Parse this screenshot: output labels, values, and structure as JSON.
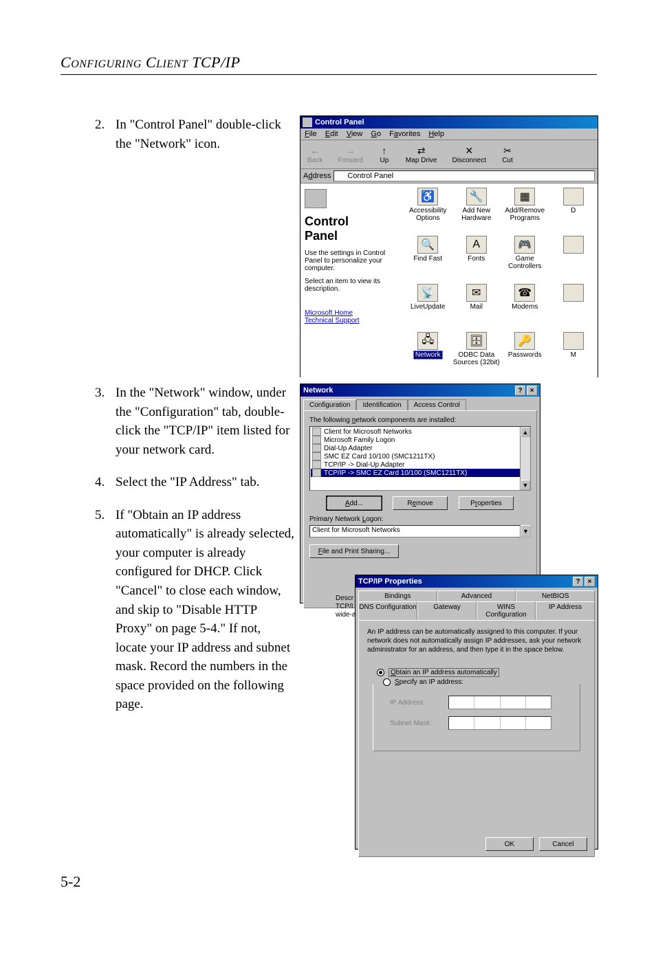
{
  "page": {
    "header": "CONFIGURING CLIENT TCP/IP",
    "page_number": "5-2"
  },
  "steps": [
    {
      "num": "2.",
      "text": "In \"Control Panel\" double-click the \"Network\" icon."
    },
    {
      "num": "3.",
      "text": "In the \"Network\" window, under the \"Configuration\" tab, double-click the \"TCP/IP\" item listed for your network card."
    },
    {
      "num": "4.",
      "text": "Select the \"IP Address\" tab."
    },
    {
      "num": "5.",
      "text": "If \"Obtain an IP address automatically\" is already selected, your computer is already configured for DHCP. Click \"Cancel\" to close each window, and skip to \"Disable HTTP Proxy\" on page 5-4.\" If not, locate your IP address and subnet mask. Record the numbers in the space provided on the following page."
    }
  ],
  "control_panel": {
    "title": "Control Panel",
    "menus": [
      "File",
      "Edit",
      "View",
      "Go",
      "Favorites",
      "Help"
    ],
    "toolbar": [
      {
        "label": "Back",
        "enabled": false,
        "glyph": "←"
      },
      {
        "label": "Forward",
        "enabled": false,
        "glyph": "→"
      },
      {
        "label": "Up",
        "enabled": true,
        "glyph": "↑"
      },
      {
        "label": "Map Drive",
        "enabled": true,
        "glyph": "⇄"
      },
      {
        "label": "Disconnect",
        "enabled": true,
        "glyph": "✕"
      },
      {
        "label": "Cut",
        "enabled": true,
        "glyph": "✂"
      }
    ],
    "address_label": "Address",
    "address_value": "Control Panel",
    "side": {
      "title_line1": "Control",
      "title_line2": "Panel",
      "desc1": "Use the settings in Control Panel to personalize your computer.",
      "desc2": "Select an item to view its description.",
      "link1": "Microsoft Home",
      "link2": "Technical Support"
    },
    "icons": [
      {
        "label": "Accessibility Options",
        "glyph": "♿"
      },
      {
        "label": "Add New Hardware",
        "glyph": "🔧"
      },
      {
        "label": "Add/Remove Programs",
        "glyph": "▦"
      },
      {
        "label": "D",
        "glyph": ""
      },
      {
        "label": "Find Fast",
        "glyph": "🔍"
      },
      {
        "label": "Fonts",
        "glyph": "A"
      },
      {
        "label": "Game Controllers",
        "glyph": "🎮"
      },
      {
        "label": "",
        "glyph": ""
      },
      {
        "label": "LiveUpdate",
        "glyph": "📡"
      },
      {
        "label": "Mail",
        "glyph": "✉"
      },
      {
        "label": "Modems",
        "glyph": "☎"
      },
      {
        "label": "",
        "glyph": ""
      },
      {
        "label": "Network",
        "glyph": "🖧",
        "selected": true
      },
      {
        "label": "ODBC Data Sources (32bit)",
        "glyph": "🗄"
      },
      {
        "label": "Passwords",
        "glyph": "🔑"
      },
      {
        "label": "M",
        "glyph": ""
      }
    ]
  },
  "network": {
    "title": "Network",
    "tabs": [
      "Configuration",
      "Identification",
      "Access Control"
    ],
    "list_label": "The following network components are installed:",
    "items": [
      "Client for Microsoft Networks",
      "Microsoft Family Logon",
      "Dial-Up Adapter",
      "SMC EZ Card 10/100 (SMC1211TX)",
      "TCP/IP -> Dial-Up Adapter",
      "TCP/IP -> SMC EZ Card 10/100 (SMC1211TX)"
    ],
    "buttons": {
      "add": "Add...",
      "remove": "Remove",
      "properties": "Properties"
    },
    "logon_label": "Primary Network Logon:",
    "logon_value": "Client for Microsoft Networks",
    "share_button": "File and Print Sharing...",
    "desc_label": "Descr",
    "desc_text1": "TCP/I",
    "desc_text2": "wide-a"
  },
  "tcpip": {
    "title": "TCP/IP Properties",
    "tabs_row1": [
      "Bindings",
      "Advanced",
      "NetBIOS"
    ],
    "tabs_row2": [
      "DNS Configuration",
      "Gateway",
      "WINS Configuration",
      "IP Address"
    ],
    "desc": "An IP address can be automatically assigned to this computer. If your network does not automatically assign IP addresses, ask your network administrator for an address, and then type it in the space below.",
    "radio1": "Obtain an IP address automatically",
    "radio2": "Specify an IP address:",
    "ip_label": "IP Address:",
    "mask_label": "Subnet Mask:",
    "ok": "OK",
    "cancel": "Cancel"
  }
}
